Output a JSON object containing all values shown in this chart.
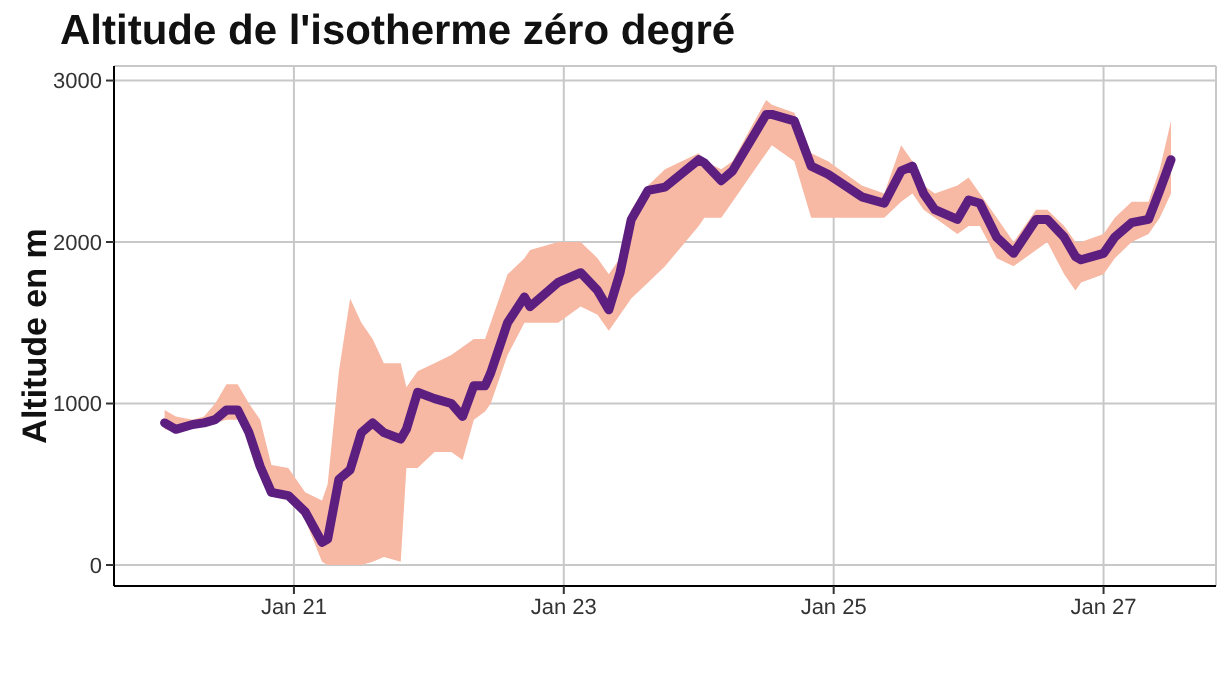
{
  "chart_data": {
    "type": "line",
    "title": "Altitude de l'isotherme zéro degré",
    "ylabel": "Altitude en m",
    "x": [
      "--01-20T01:00",
      "--01-20T03:00",
      "--01-20T06:00",
      "--01-20T08:00",
      "--01-20T10:00",
      "--01-20T12:00",
      "--01-20T14:00",
      "--01-20T16:00",
      "--01-20T18:00",
      "--01-20T20:00",
      "--01-20T23:00",
      "--01-21T02:00",
      "--01-21T05:00",
      "--01-21T06:00",
      "--01-21T08:00",
      "--01-21T10:00",
      "--01-21T12:00",
      "--01-21T14:00",
      "--01-21T16:00",
      "--01-21T19:00",
      "--01-21T20:00",
      "--01-21T22:00",
      "--01-22T01:00",
      "--01-22T04:00",
      "--01-22T06:00",
      "--01-22T08:00",
      "--01-22T10:00",
      "--01-22T11:00",
      "--01-22T14:00",
      "--01-22T17:00",
      "--01-22T18:00",
      "--01-22T23:00",
      "--01-23T03:00",
      "--01-23T06:00",
      "--01-23T08:00",
      "--01-23T10:00",
      "--01-23T12:00",
      "--01-23T15:00",
      "--01-23T18:00",
      "--01-24T00:00",
      "--01-24T01:00",
      "--01-24T04:00",
      "--01-24T06:00",
      "--01-24T12:00",
      "--01-24T13:00",
      "--01-24T17:00",
      "--01-24T20:00",
      "--01-24T23:00",
      "--01-25T05:00",
      "--01-25T09:00",
      "--01-25T12:00",
      "--01-25T14:00",
      "--01-25T16:00",
      "--01-25T18:00",
      "--01-25T22:00",
      "--01-26T00:00",
      "--01-26T02:00",
      "--01-26T05:00",
      "--01-26T08:00",
      "--01-26T12:00",
      "--01-26T14:00",
      "--01-26T17:00",
      "--01-26T19:00",
      "--01-26T20:00",
      "--01-27T00:00",
      "--01-27T02:00",
      "--01-27T05:00",
      "--01-27T08:00",
      "--01-27T10:00",
      "--01-27T12:00"
    ],
    "series": [
      {
        "color": "#5c1e7f",
        "values": [
          880,
          840,
          870,
          880,
          900,
          960,
          960,
          820,
          610,
          450,
          430,
          330,
          140,
          160,
          530,
          590,
          820,
          880,
          820,
          780,
          840,
          1070,
          1030,
          1000,
          920,
          1110,
          1110,
          1190,
          1500,
          1660,
          1600,
          1750,
          1810,
          1700,
          1580,
          1810,
          2140,
          2320,
          2340,
          2510,
          2490,
          2380,
          2440,
          2790,
          2790,
          2750,
          2470,
          2420,
          2280,
          2240,
          2440,
          2470,
          2300,
          2200,
          2140,
          2260,
          2240,
          2030,
          1930,
          2140,
          2140,
          2030,
          1910,
          1890,
          1930,
          2030,
          2120,
          2140,
          2320,
          2510
        ],
        "lower": [
          840,
          830,
          860,
          860,
          880,
          900,
          900,
          780,
          600,
          450,
          430,
          280,
          20,
          0,
          0,
          0,
          0,
          20,
          50,
          20,
          600,
          600,
          700,
          700,
          650,
          900,
          950,
          1000,
          1300,
          1500,
          1500,
          1500,
          1600,
          1550,
          1450,
          1550,
          1650,
          1750,
          1850,
          2100,
          2150,
          2150,
          2250,
          2550,
          2600,
          2500,
          2150,
          2150,
          2150,
          2150,
          2250,
          2300,
          2200,
          2150,
          2050,
          2100,
          2100,
          1900,
          1850,
          1950,
          2000,
          1800,
          1700,
          1750,
          1800,
          1900,
          2000,
          2050,
          2150,
          2300
        ],
        "upper": [
          960,
          920,
          900,
          920,
          1000,
          1120,
          1120,
          1000,
          900,
          620,
          600,
          450,
          400,
          500,
          1200,
          1650,
          1500,
          1400,
          1250,
          1250,
          1100,
          1200,
          1250,
          1300,
          1350,
          1400,
          1400,
          1500,
          1800,
          1900,
          1950,
          2000,
          2000,
          1900,
          1800,
          1900,
          2200,
          2350,
          2450,
          2550,
          2500,
          2450,
          2500,
          2880,
          2850,
          2800,
          2550,
          2500,
          2350,
          2300,
          2600,
          2500,
          2350,
          2300,
          2350,
          2400,
          2300,
          2150,
          2000,
          2200,
          2200,
          2100,
          2000,
          2000,
          2050,
          2150,
          2250,
          2250,
          2450,
          2750
        ]
      }
    ],
    "xlim": [
      "--01-19T16:00",
      "--01-27T20:00"
    ],
    "xticks": [
      {
        "value": "--01-21",
        "label": "Jan 21"
      },
      {
        "value": "--01-23",
        "label": "Jan 23"
      },
      {
        "value": "--01-25",
        "label": "Jan 25"
      },
      {
        "value": "--01-27",
        "label": "Jan 27"
      }
    ],
    "ylim": [
      -130,
      3090
    ],
    "yticks": [
      0,
      1000,
      2000,
      3000
    ],
    "grid": true,
    "legend": false,
    "marker": "none",
    "line_style": "solid"
  }
}
